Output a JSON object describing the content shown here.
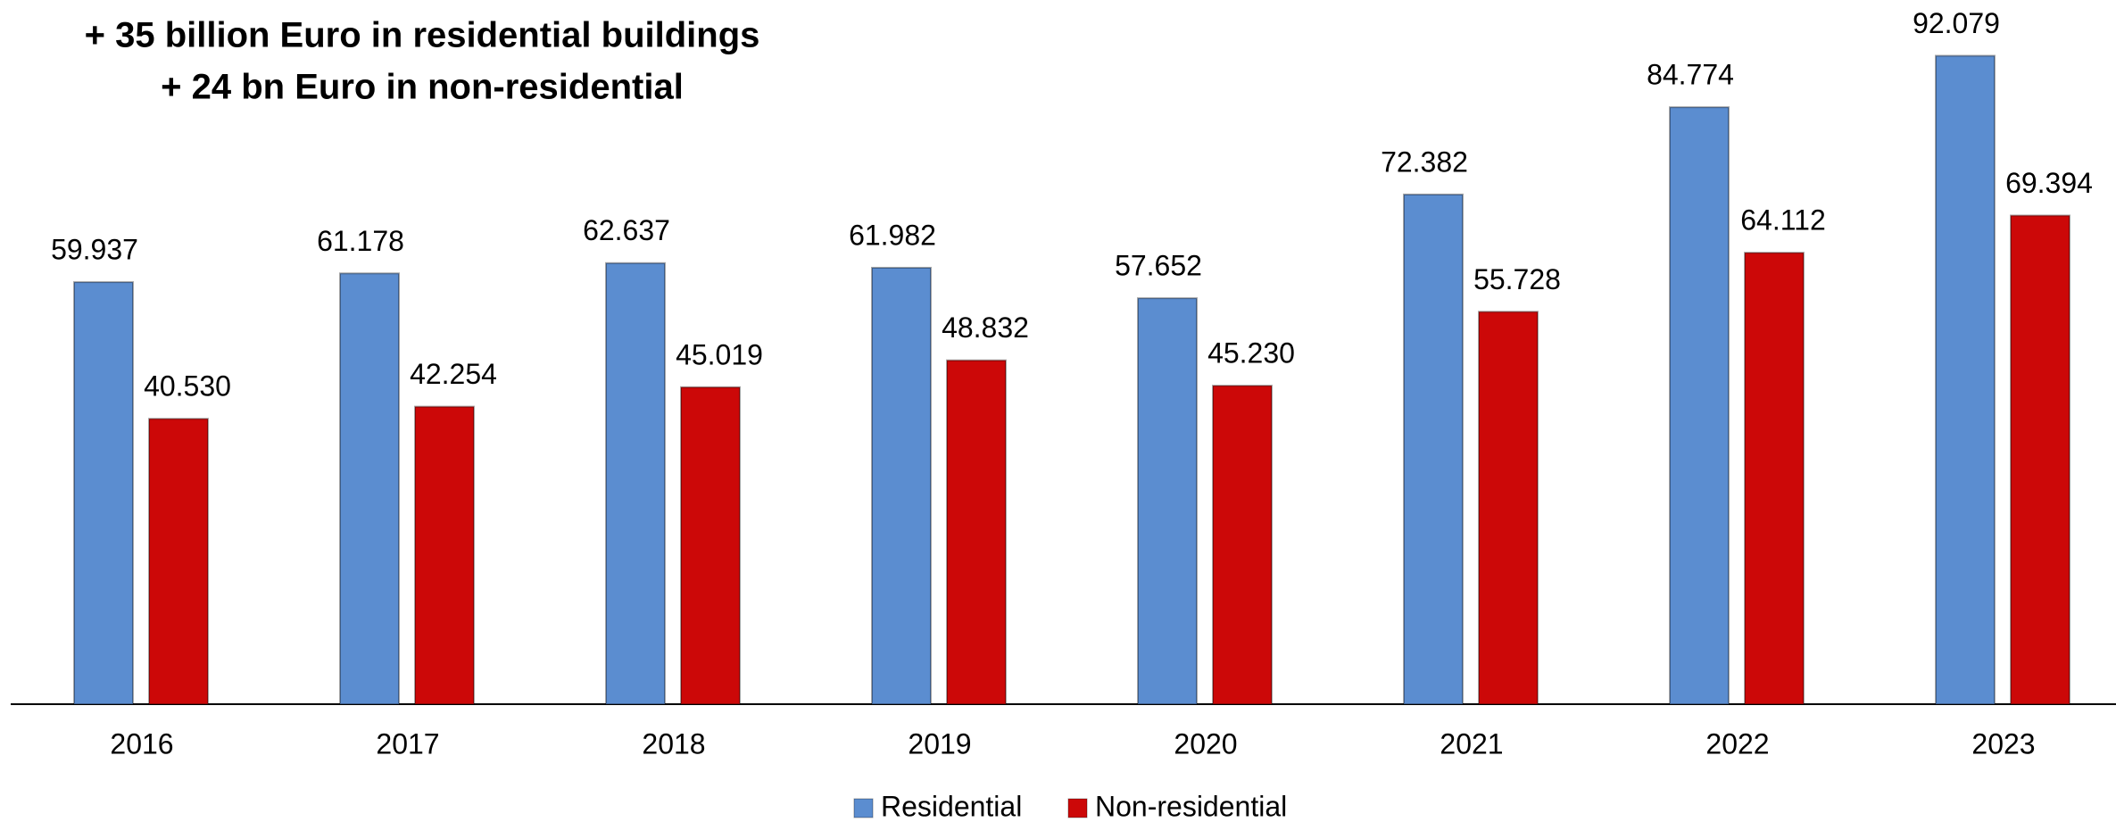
{
  "chart_data": {
    "type": "bar",
    "title": "+ 35 billion Euro in residential buildings",
    "subtitle": "+ 24 bn Euro in non-residential",
    "categories": [
      "2016",
      "2017",
      "2018",
      "2019",
      "2020",
      "2021",
      "2022",
      "2023"
    ],
    "series": [
      {
        "name": "Residential",
        "color": "#5b8dd0",
        "values": [
          59.937,
          61.178,
          62.637,
          61.982,
          57.652,
          72.382,
          84.774,
          92.079
        ],
        "value_labels": [
          "59.937",
          "61.178",
          "62.637",
          "61.982",
          "57.652",
          "72.382",
          "84.774",
          "92.079"
        ]
      },
      {
        "name": "Non-residential",
        "color": "#cc0808",
        "values": [
          40.53,
          42.254,
          45.019,
          48.832,
          45.23,
          55.728,
          64.112,
          69.394
        ],
        "value_labels": [
          "40.530",
          "42.254",
          "45.019",
          "48.832",
          "45.230",
          "55.728",
          "64.112",
          "69.394"
        ]
      }
    ]
  }
}
